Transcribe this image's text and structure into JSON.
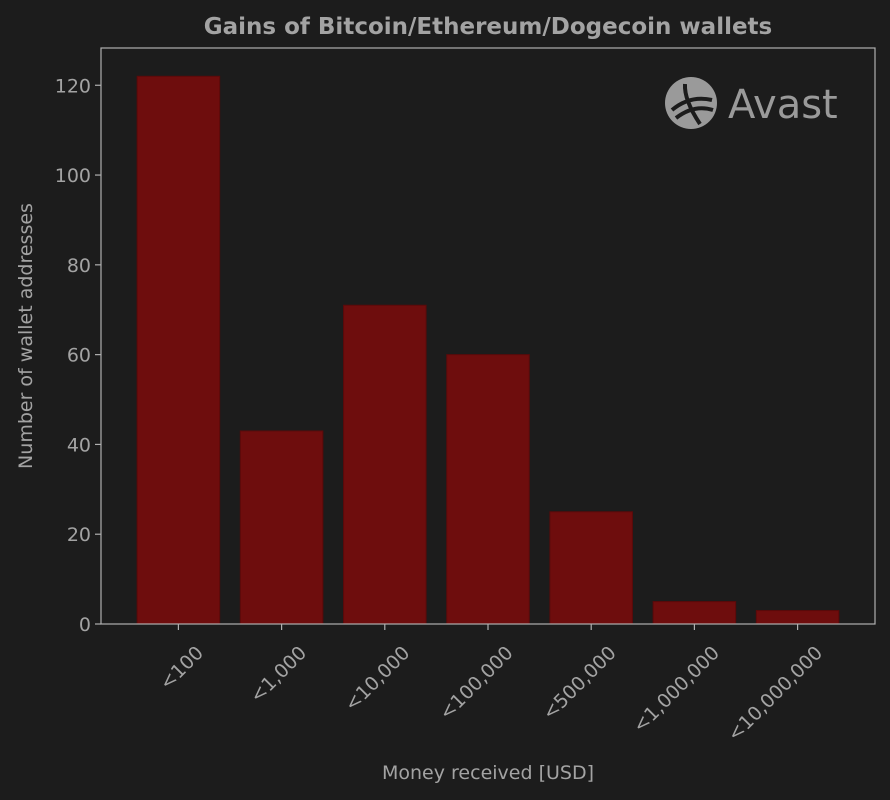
{
  "chart_data": {
    "type": "bar",
    "title": "Gains of Bitcoin/Ethereum/Dogecoin wallets",
    "x_label": "Money received [USD]",
    "y_label": "Number of wallet addresses",
    "watermark": "Avast",
    "categories": [
      "<100",
      "<1,000",
      "<10,000",
      "<100,000",
      "<500,000",
      "<1,000,000",
      "<10,000,000"
    ],
    "values": [
      122,
      43,
      71,
      60,
      25,
      5,
      3
    ],
    "color": "#6e0d0d",
    "ylim": [
      0,
      128.3
    ],
    "yticks": [
      0,
      20,
      40,
      60,
      80,
      100,
      120
    ],
    "grid": false
  }
}
